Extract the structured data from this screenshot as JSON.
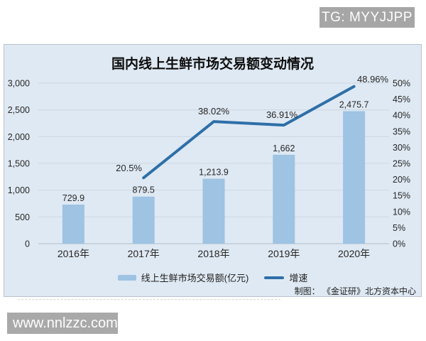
{
  "watermarks": {
    "top_right": {
      "text": "TG: MYYJJPP",
      "bg": "#a6a6a6"
    },
    "bottom_left": {
      "text": "www.nnlzzc.com",
      "bg": "#a9a9a9"
    }
  },
  "attribution": "制图：  《金证研》北方资本中心",
  "chart_data": {
    "type": "bar",
    "title": "国内线上生鲜市场交易额变动情况",
    "categories": [
      "2016年",
      "2017年",
      "2018年",
      "2019年",
      "2020年"
    ],
    "series": [
      {
        "name": "线上生鲜市场交易额(亿元)",
        "kind": "bar",
        "axis": "left",
        "values": [
          729.9,
          879.5,
          1213.9,
          1662,
          2475.7
        ],
        "value_labels": [
          "729.9",
          "879.5",
          "1,213.9",
          "1,662",
          "2,475.7"
        ],
        "color": "#9ec3e3"
      },
      {
        "name": "增速",
        "kind": "line",
        "axis": "right",
        "values": [
          null,
          20.5,
          38.02,
          36.91,
          48.96
        ],
        "value_labels": [
          null,
          "20.5%",
          "38.02%",
          "36.91%",
          "48.96%"
        ],
        "color": "#2e6fa8"
      }
    ],
    "left_axis": {
      "min": 0,
      "max": 3000,
      "step": 500,
      "tick_labels": [
        "0",
        "500",
        "1,000",
        "1,500",
        "2,000",
        "2,500",
        "3,000"
      ]
    },
    "right_axis": {
      "min": 0,
      "max": 50,
      "step": 5,
      "tick_labels": [
        "0%",
        "5%",
        "10%",
        "15%",
        "20%",
        "25%",
        "30%",
        "35%",
        "40%",
        "45%",
        "50%"
      ]
    },
    "grid": true,
    "legend_position": "bottom",
    "background": "#dfe9f3"
  }
}
